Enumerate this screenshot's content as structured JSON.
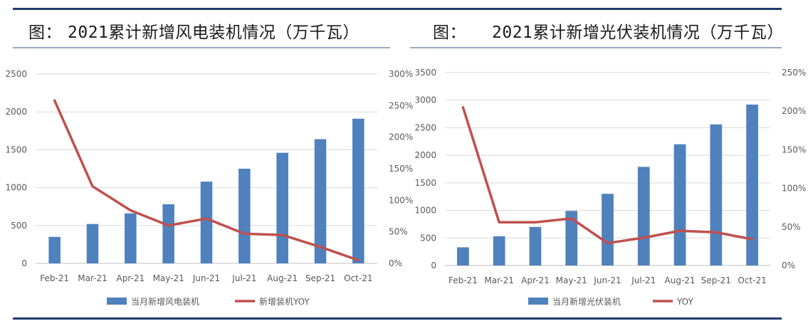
{
  "colors": {
    "bar": "#4f81bd",
    "line": "#c0504d",
    "rule": "#1f3d6b",
    "grid": "#d9d9d9",
    "text": "#595959"
  },
  "header": {
    "left": {
      "label": "图：",
      "text": "2021累计新增风电装机情况（万千瓦）"
    },
    "right": {
      "label": "图：",
      "text": "2021累计新增光伏装机情况（万千瓦）"
    }
  },
  "chart_data": [
    {
      "type": "bar",
      "title": "2021累计新增风电装机情况（万千瓦）",
      "categories": [
        "Feb-21",
        "Mar-21",
        "Apr-21",
        "May-21",
        "Jun-21",
        "Jul-21",
        "Aug-21",
        "Sep-21",
        "Oct-21"
      ],
      "series": [
        {
          "name": "当月新增风电装机",
          "type": "bar",
          "axis": "left",
          "values": [
            350,
            520,
            660,
            780,
            1080,
            1250,
            1460,
            1640,
            1910
          ]
        },
        {
          "name": "新增装机YOY",
          "type": "line",
          "axis": "right",
          "values": [
            2.58,
            1.22,
            0.84,
            0.6,
            0.71,
            0.47,
            0.45,
            0.26,
            0.05
          ]
        }
      ],
      "y_left": {
        "min": 0,
        "max": 2500,
        "ticks": [
          "0",
          "500",
          "1000",
          "1500",
          "2000",
          "2500"
        ]
      },
      "y_right": {
        "min": 0,
        "max": 3,
        "ticks": [
          "0%",
          "50%",
          "100%",
          "150%",
          "200%",
          "250%",
          "300%"
        ]
      },
      "grid": true,
      "legend": "bottom"
    },
    {
      "type": "bar",
      "title": "2021累计新增光伏装机情况（万千瓦）",
      "categories": [
        "Feb-21",
        "Mar-21",
        "Apr-21",
        "May-21",
        "Jun-21",
        "Jul-21",
        "Aug-21",
        "Sep-21",
        "Oct-21"
      ],
      "series": [
        {
          "name": "当月新增光伏装机",
          "type": "bar",
          "axis": "left",
          "values": [
            330,
            530,
            700,
            990,
            1300,
            1790,
            2200,
            2560,
            2920
          ]
        },
        {
          "name": "YOY",
          "type": "line",
          "axis": "right",
          "values": [
            2.05,
            0.56,
            0.56,
            0.61,
            0.29,
            0.36,
            0.45,
            0.43,
            0.34
          ]
        }
      ],
      "y_left": {
        "min": 0,
        "max": 3500,
        "ticks": [
          "0",
          "500",
          "1000",
          "1500",
          "2000",
          "2500",
          "3000",
          "3500"
        ]
      },
      "y_right": {
        "min": 0,
        "max": 2.5,
        "ticks": [
          "0%",
          "50%",
          "100%",
          "150%",
          "200%",
          "250%"
        ]
      },
      "grid": true,
      "legend": "bottom"
    }
  ]
}
